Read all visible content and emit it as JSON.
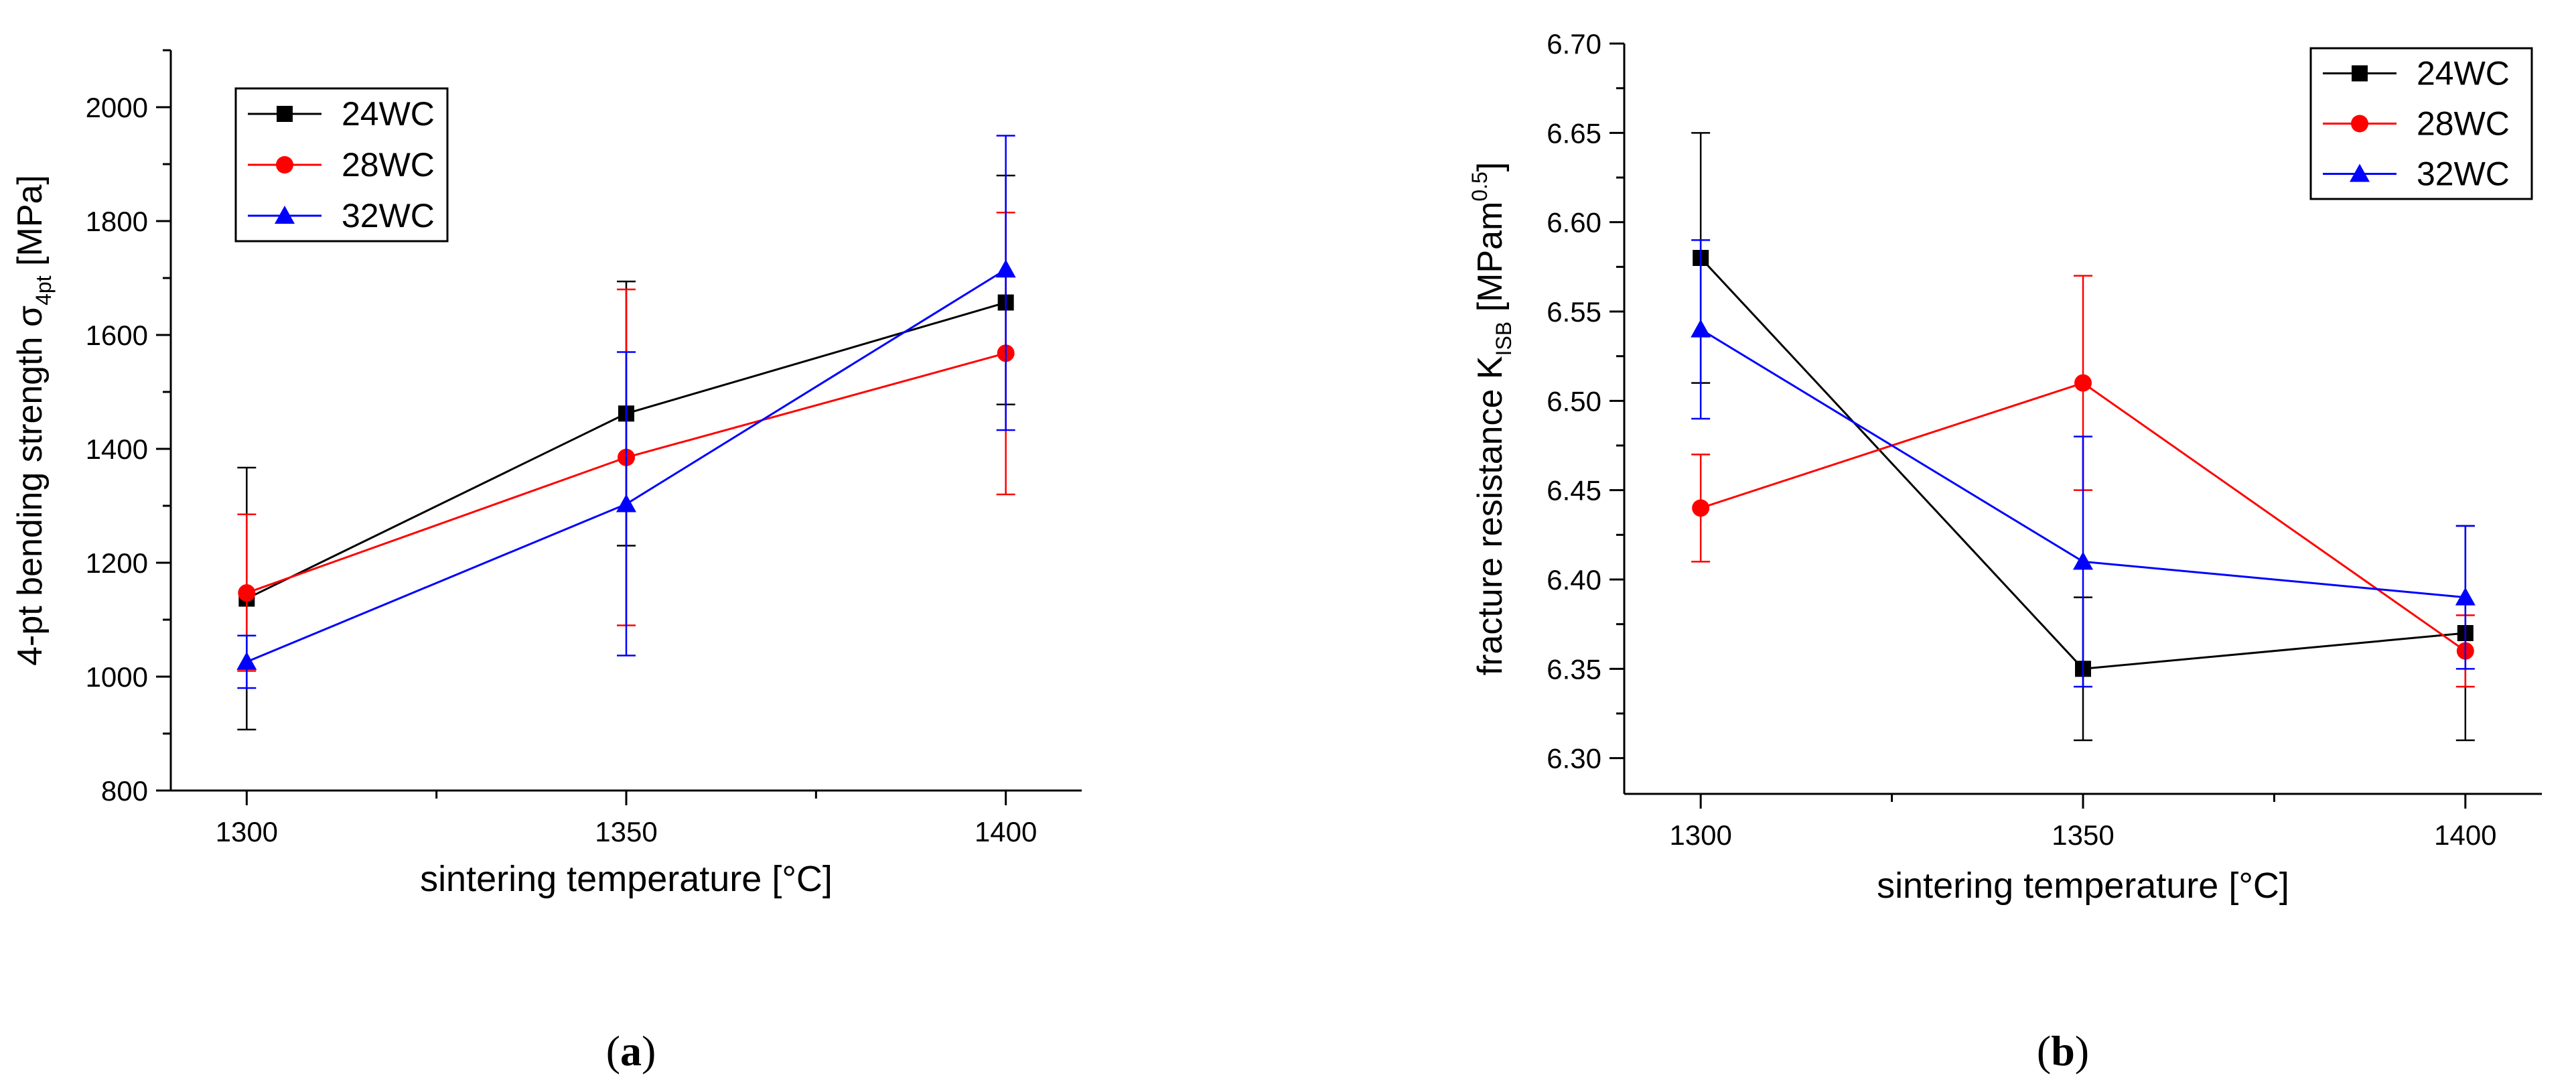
{
  "chart_data": [
    {
      "type": "line",
      "panel": "a",
      "caption": {
        "open": "(",
        "letter": "a",
        "close": ")"
      },
      "xlabel": "sintering temperature [°C]",
      "ylabel": {
        "main": "4-pt bending strength σ",
        "sub": "4pt",
        "tail": " [MPa]"
      },
      "x": [
        1300,
        1350,
        1400
      ],
      "xticks": [
        "1300",
        "1350",
        "1400"
      ],
      "xlim": [
        1290,
        1410
      ],
      "ylim": [
        800,
        2100
      ],
      "yticks": [
        "800",
        "1000",
        "1200",
        "1400",
        "1600",
        "1800",
        "2000"
      ],
      "legend_position": "top-left",
      "series": [
        {
          "name": "24WC",
          "color": "#000000",
          "marker": "square",
          "values": [
            1137,
            1462,
            1657
          ],
          "err_low": [
            907,
            1230,
            1478
          ],
          "err_high": [
            1367,
            1694,
            1880
          ]
        },
        {
          "name": "28WC",
          "color": "#ff0000",
          "marker": "circle",
          "values": [
            1147,
            1385,
            1568
          ],
          "err_low": [
            1010,
            1090,
            1320
          ],
          "err_high": [
            1285,
            1680,
            1815
          ]
        },
        {
          "name": "32WC",
          "color": "#0000ff",
          "marker": "triangle",
          "values": [
            1026,
            1303,
            1715
          ],
          "err_low": [
            980,
            1037,
            1433
          ],
          "err_high": [
            1072,
            1570,
            1950
          ]
        }
      ]
    },
    {
      "type": "line",
      "panel": "b",
      "caption": {
        "open": "(",
        "letter": "b",
        "close": ")"
      },
      "xlabel": "sintering temperature [°C]",
      "ylabel": {
        "main": "fracture resistance K",
        "sub": "ISB",
        "tail": " [MPam",
        "sup": "0.5",
        "end": "]"
      },
      "x": [
        1300,
        1350,
        1400
      ],
      "xticks": [
        "1300",
        "1350",
        "1400"
      ],
      "xlim": [
        1290,
        1410
      ],
      "ylim": [
        6.28,
        6.7
      ],
      "yticks": [
        "6.30",
        "6.35",
        "6.40",
        "6.45",
        "6.50",
        "6.55",
        "6.60",
        "6.65",
        "6.70"
      ],
      "legend_position": "top-right",
      "series": [
        {
          "name": "24WC",
          "color": "#000000",
          "marker": "square",
          "values": [
            6.58,
            6.35,
            6.37
          ],
          "err_low": [
            6.51,
            6.31,
            6.31
          ],
          "err_high": [
            6.65,
            6.39,
            6.43
          ]
        },
        {
          "name": "28WC",
          "color": "#ff0000",
          "marker": "circle",
          "values": [
            6.44,
            6.51,
            6.36
          ],
          "err_low": [
            6.41,
            6.45,
            6.34
          ],
          "err_high": [
            6.47,
            6.57,
            6.38
          ]
        },
        {
          "name": "32WC",
          "color": "#0000ff",
          "marker": "triangle",
          "values": [
            6.54,
            6.41,
            6.39
          ],
          "err_low": [
            6.49,
            6.34,
            6.35
          ],
          "err_high": [
            6.59,
            6.48,
            6.43
          ]
        }
      ]
    }
  ]
}
